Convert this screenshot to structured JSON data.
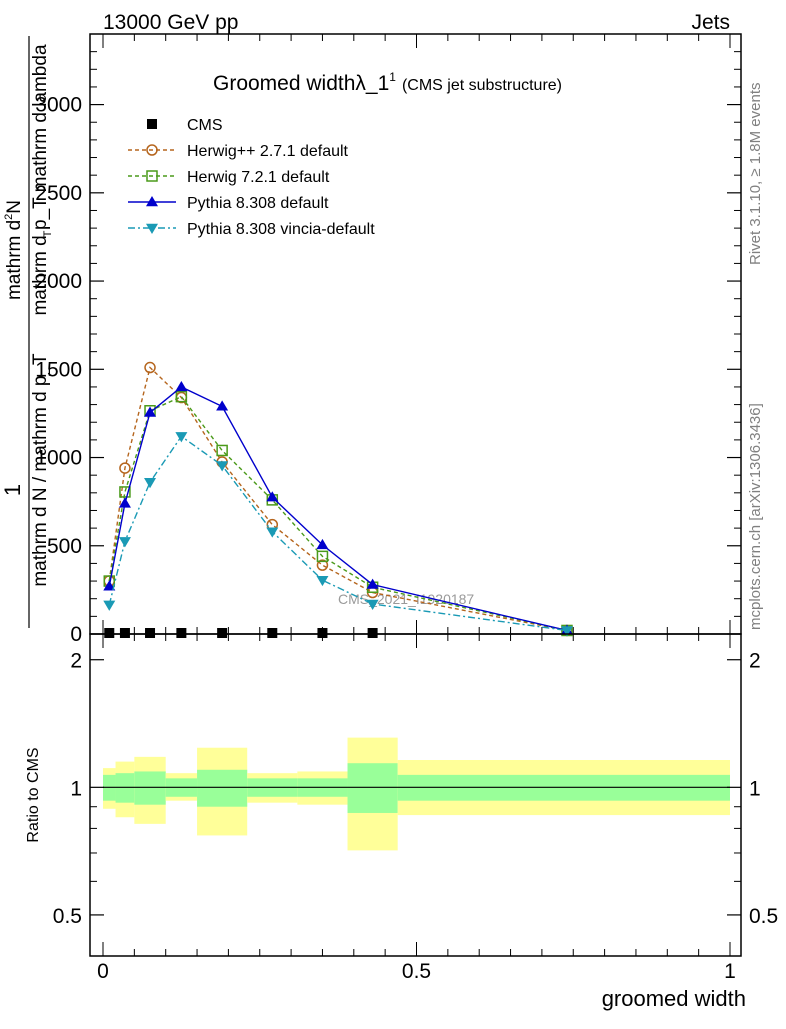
{
  "header": {
    "energy_label": "13000 GeV pp",
    "category_label": "Jets"
  },
  "side_text": {
    "rivet": "Rivet 3.1.10, ≥ 1.8M events",
    "mcplots": "mcplots.cern.ch [arXiv:1306.3436]"
  },
  "chart_data": {
    "type": "line",
    "title_main": "Groomed widthλ_1",
    "title_sup": "1",
    "title_sub": "(CMS jet substructure)",
    "watermark": "CMS_2021_I1920187",
    "ylabel_numerator_top": "mathrm d",
    "ylabel_numerator_sup": "2",
    "ylabel_numerator_N": "N",
    "ylabel_denominator": "mathrm d p_T mathrm d lambda",
    "ylabel_fraction_one": "1",
    "ylabel_fraction_den": "mathrm d N / mathrm d p_T",
    "ylabel_sub_T": "T",
    "ylim": [
      0,
      3400
    ],
    "yticks": [
      0,
      500,
      1000,
      1500,
      2000,
      2500,
      3000
    ],
    "ytick_labels": [
      "0",
      "500",
      "1000",
      "1500",
      "2000",
      "2500",
      "3000"
    ],
    "xlabel": "groomed width",
    "xlim": [
      -0.02,
      1.02
    ],
    "xticks": [
      0,
      0.5,
      1
    ],
    "xtick_labels": [
      "0",
      "0.5",
      "1"
    ],
    "ratio": {
      "ylabel": "Ratio to CMS",
      "ylim": [
        0.4,
        2.3
      ],
      "ytick_labels": [
        "0.5",
        "1",
        "2"
      ],
      "yticks": [
        0.5,
        1,
        2
      ],
      "bins": [
        {
          "lo": 0.0,
          "hi": 0.02,
          "in": [
            0.93,
            1.07
          ],
          "out": [
            0.89,
            1.11
          ]
        },
        {
          "lo": 0.02,
          "hi": 0.05,
          "in": [
            0.92,
            1.08
          ],
          "out": [
            0.85,
            1.15
          ]
        },
        {
          "lo": 0.05,
          "hi": 0.1,
          "in": [
            0.91,
            1.09
          ],
          "out": [
            0.82,
            1.18
          ]
        },
        {
          "lo": 0.1,
          "hi": 0.15,
          "in": [
            0.95,
            1.05
          ],
          "out": [
            0.93,
            1.08
          ]
        },
        {
          "lo": 0.15,
          "hi": 0.23,
          "in": [
            0.9,
            1.1
          ],
          "out": [
            0.77,
            1.24
          ]
        },
        {
          "lo": 0.23,
          "hi": 0.31,
          "in": [
            0.95,
            1.05
          ],
          "out": [
            0.92,
            1.08
          ]
        },
        {
          "lo": 0.31,
          "hi": 0.39,
          "in": [
            0.95,
            1.05
          ],
          "out": [
            0.91,
            1.09
          ]
        },
        {
          "lo": 0.39,
          "hi": 0.47,
          "in": [
            0.87,
            1.14
          ],
          "out": [
            0.71,
            1.31
          ]
        },
        {
          "lo": 0.47,
          "hi": 1.0,
          "in": [
            0.93,
            1.07
          ],
          "out": [
            0.86,
            1.16
          ]
        }
      ]
    },
    "data_points_x": [
      0.01,
      0.035,
      0.075,
      0.125,
      0.19,
      0.27,
      0.35,
      0.43
    ],
    "data_points_y": [
      0,
      0,
      0,
      0,
      0,
      0,
      0,
      0
    ],
    "series": [
      {
        "name": "CMS",
        "style": "data",
        "color": "#000000",
        "x": [],
        "y": []
      },
      {
        "name": "Herwig++ 2.7.1 default",
        "style": "circle",
        "color": "#b5651d",
        "dash": "4,3",
        "x": [
          0.01,
          0.035,
          0.075,
          0.125,
          0.19,
          0.27,
          0.35,
          0.43,
          0.74
        ],
        "y": [
          300,
          940,
          1510,
          1340,
          975,
          620,
          390,
          235,
          20
        ]
      },
      {
        "name": "Herwig 7.2.1 default",
        "style": "square",
        "color": "#4a9a1a",
        "dash": "4,3",
        "x": [
          0.01,
          0.035,
          0.075,
          0.125,
          0.19,
          0.27,
          0.35,
          0.43,
          0.74
        ],
        "y": [
          300,
          805,
          1265,
          1345,
          1040,
          760,
          440,
          265,
          20
        ]
      },
      {
        "name": "Pythia 8.308 default",
        "style": "triangle-up",
        "color": "#0000cc",
        "dash": "",
        "x": [
          0.01,
          0.035,
          0.075,
          0.125,
          0.19,
          0.27,
          0.35,
          0.43,
          0.74
        ],
        "y": [
          270,
          740,
          1255,
          1400,
          1290,
          775,
          505,
          280,
          20
        ]
      },
      {
        "name": "Pythia 8.308 vincia-default",
        "style": "triangle-down",
        "color": "#1a9ab5",
        "dash": "7,3,2,3",
        "x": [
          0.01,
          0.035,
          0.075,
          0.125,
          0.19,
          0.27,
          0.35,
          0.43,
          0.74
        ],
        "y": [
          165,
          525,
          860,
          1120,
          955,
          580,
          305,
          170,
          20
        ]
      }
    ]
  }
}
